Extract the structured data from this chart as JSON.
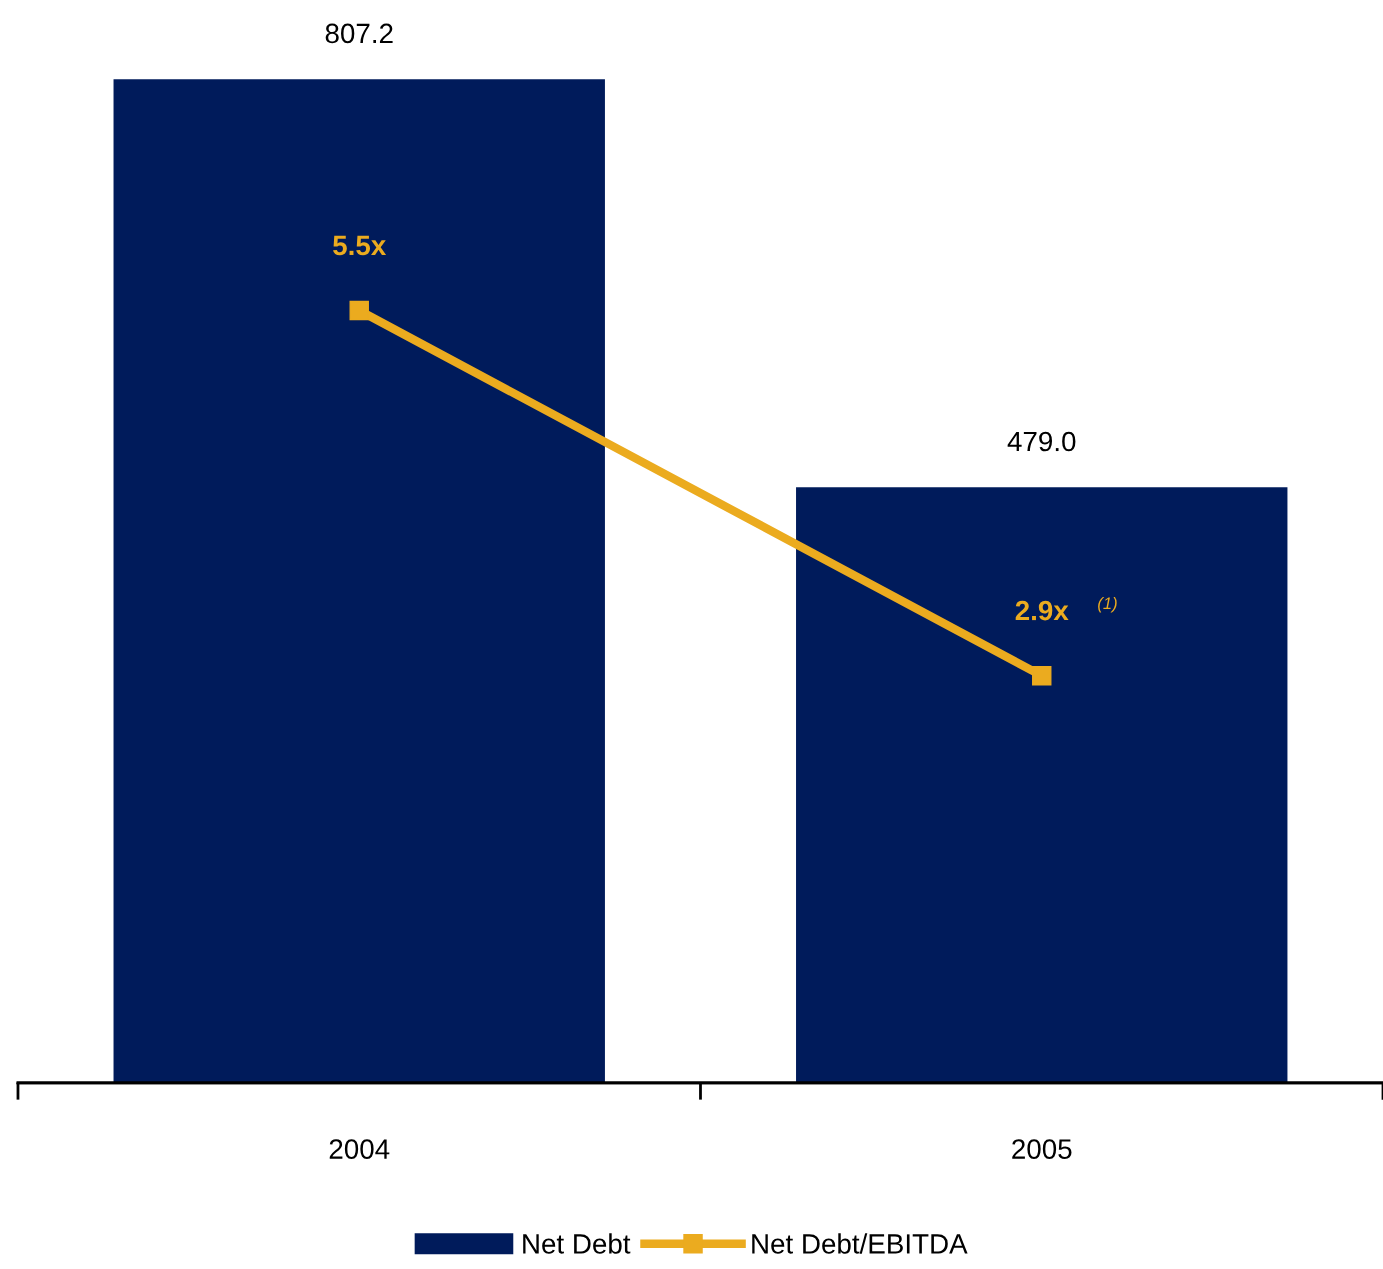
{
  "chart_data": {
    "type": "bar",
    "categories": [
      "2004",
      "2005"
    ],
    "series": [
      {
        "name": "Net Debt",
        "color": "#001b5b",
        "values": [
          807.2,
          479.0
        ],
        "value_labels": [
          "807.2",
          "479.0"
        ]
      },
      {
        "name": "Net Debt/EBITDA",
        "type": "line",
        "axis": "y2",
        "color": "#ebab1f",
        "marker": "square",
        "values": [
          5.5,
          2.9
        ],
        "value_labels": [
          "5.5x",
          "2.9x"
        ]
      }
    ],
    "annotations": [
      "(1)"
    ],
    "tick_labels": "x",
    "grid": false,
    "legend": "bottom"
  }
}
